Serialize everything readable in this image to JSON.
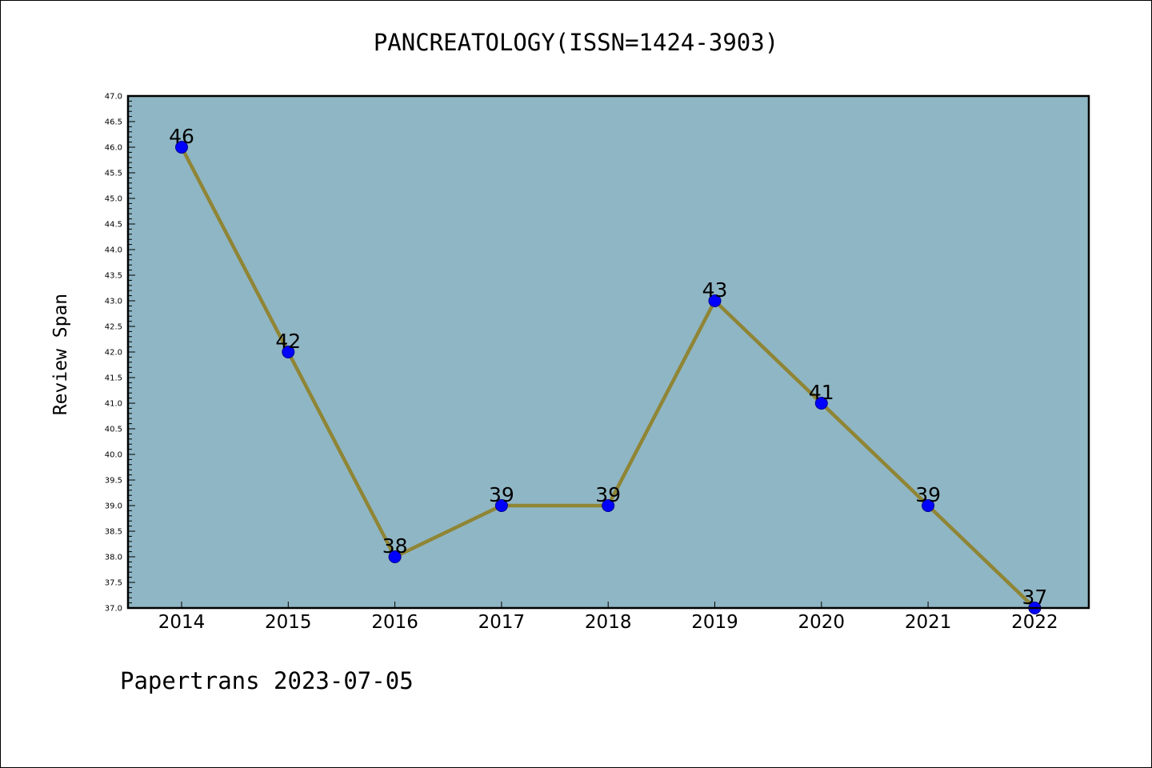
{
  "page": {
    "title": "PANCREATOLOGY(ISSN=1424-3903)",
    "footer": "Papertrans 2023-07-05"
  },
  "chart_data": {
    "type": "line",
    "title": "PANCREATOLOGY(ISSN=1424-3903)",
    "xlabel": "",
    "ylabel": "Review Span",
    "x": [
      "2014",
      "2015",
      "2016",
      "2017",
      "2018",
      "2019",
      "2020",
      "2021",
      "2022"
    ],
    "series": [
      {
        "values": [
          46,
          42,
          38,
          39,
          39,
          43,
          41,
          39,
          37
        ]
      }
    ],
    "data_labels": [
      "46",
      "42",
      "38",
      "39",
      "39",
      "43",
      "41",
      "39",
      "37"
    ],
    "ylim": [
      37.0,
      47.0
    ],
    "yticks": [
      "37.0",
      "37.5",
      "38.0",
      "38.5",
      "39.0",
      "39.5",
      "40.0",
      "40.5",
      "41.0",
      "41.5",
      "42.0",
      "42.5",
      "43.0",
      "43.5",
      "44.0",
      "44.5",
      "45.0",
      "45.5",
      "46.0",
      "46.5",
      "47.0"
    ],
    "grid": false,
    "legend": "none",
    "colors": {
      "plot_background": "#8fb6c4",
      "line": "#8f8535",
      "marker": "#0000ff",
      "marker_edge": "#00008b"
    }
  }
}
